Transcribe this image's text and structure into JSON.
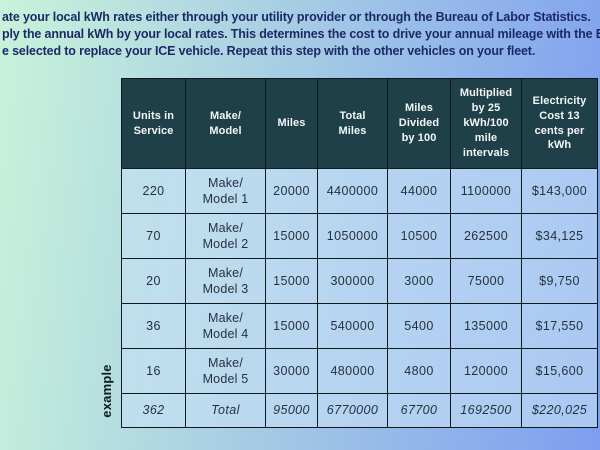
{
  "intro": {
    "lines": [
      "ate your local kWh rates either through your utility provider or through the Bureau of Labor Statistics.",
      "ply the annual kWh by your local rates. This determines the cost to drive your annual mileage with the EV",
      "e selected to replace your ICE vehicle. Repeat this step with the other vehicles on your fleet."
    ]
  },
  "side_label": "example",
  "table": {
    "headers": [
      "Units in\nService",
      "Make/\nModel",
      "Miles",
      "Total\nMiles",
      "Miles\nDivided\nby 100",
      "Multiplied\nby 25\nkWh/100\nmile\nintervals",
      "Electricity\nCost 13\ncents per\nkWh"
    ],
    "rows": [
      [
        "220",
        "Make/\nModel 1",
        "20000",
        "4400000",
        "44000",
        "1100000",
        "$143,000"
      ],
      [
        "70",
        "Make/\nModel 2",
        "15000",
        "1050000",
        "10500",
        "262500",
        "$34,125"
      ],
      [
        "20",
        "Make/\nModel 3",
        "15000",
        "300000",
        "3000",
        "75000",
        "$9,750"
      ],
      [
        "36",
        "Make/\nModel 4",
        "15000",
        "540000",
        "5400",
        "135000",
        "$17,550"
      ],
      [
        "16",
        "Make/\nModel 5",
        "30000",
        "480000",
        "4800",
        "120000",
        "$15,600"
      ]
    ],
    "total_row": [
      "362",
      "Total",
      "95000",
      "6770000",
      "67700",
      "1692500",
      "$220,025"
    ]
  },
  "colors": {
    "bg_left": "#c9f3da",
    "bg_right": "#7d9ef0",
    "header_bg": "#1f4049",
    "header_text": "#f2f6f7",
    "cell_overlay": "rgba(198,225,246,0.62)",
    "border": "#10191c",
    "intro_text": "#1b2a66",
    "body_text": "#243240",
    "example_text": "#0e1b1f"
  }
}
